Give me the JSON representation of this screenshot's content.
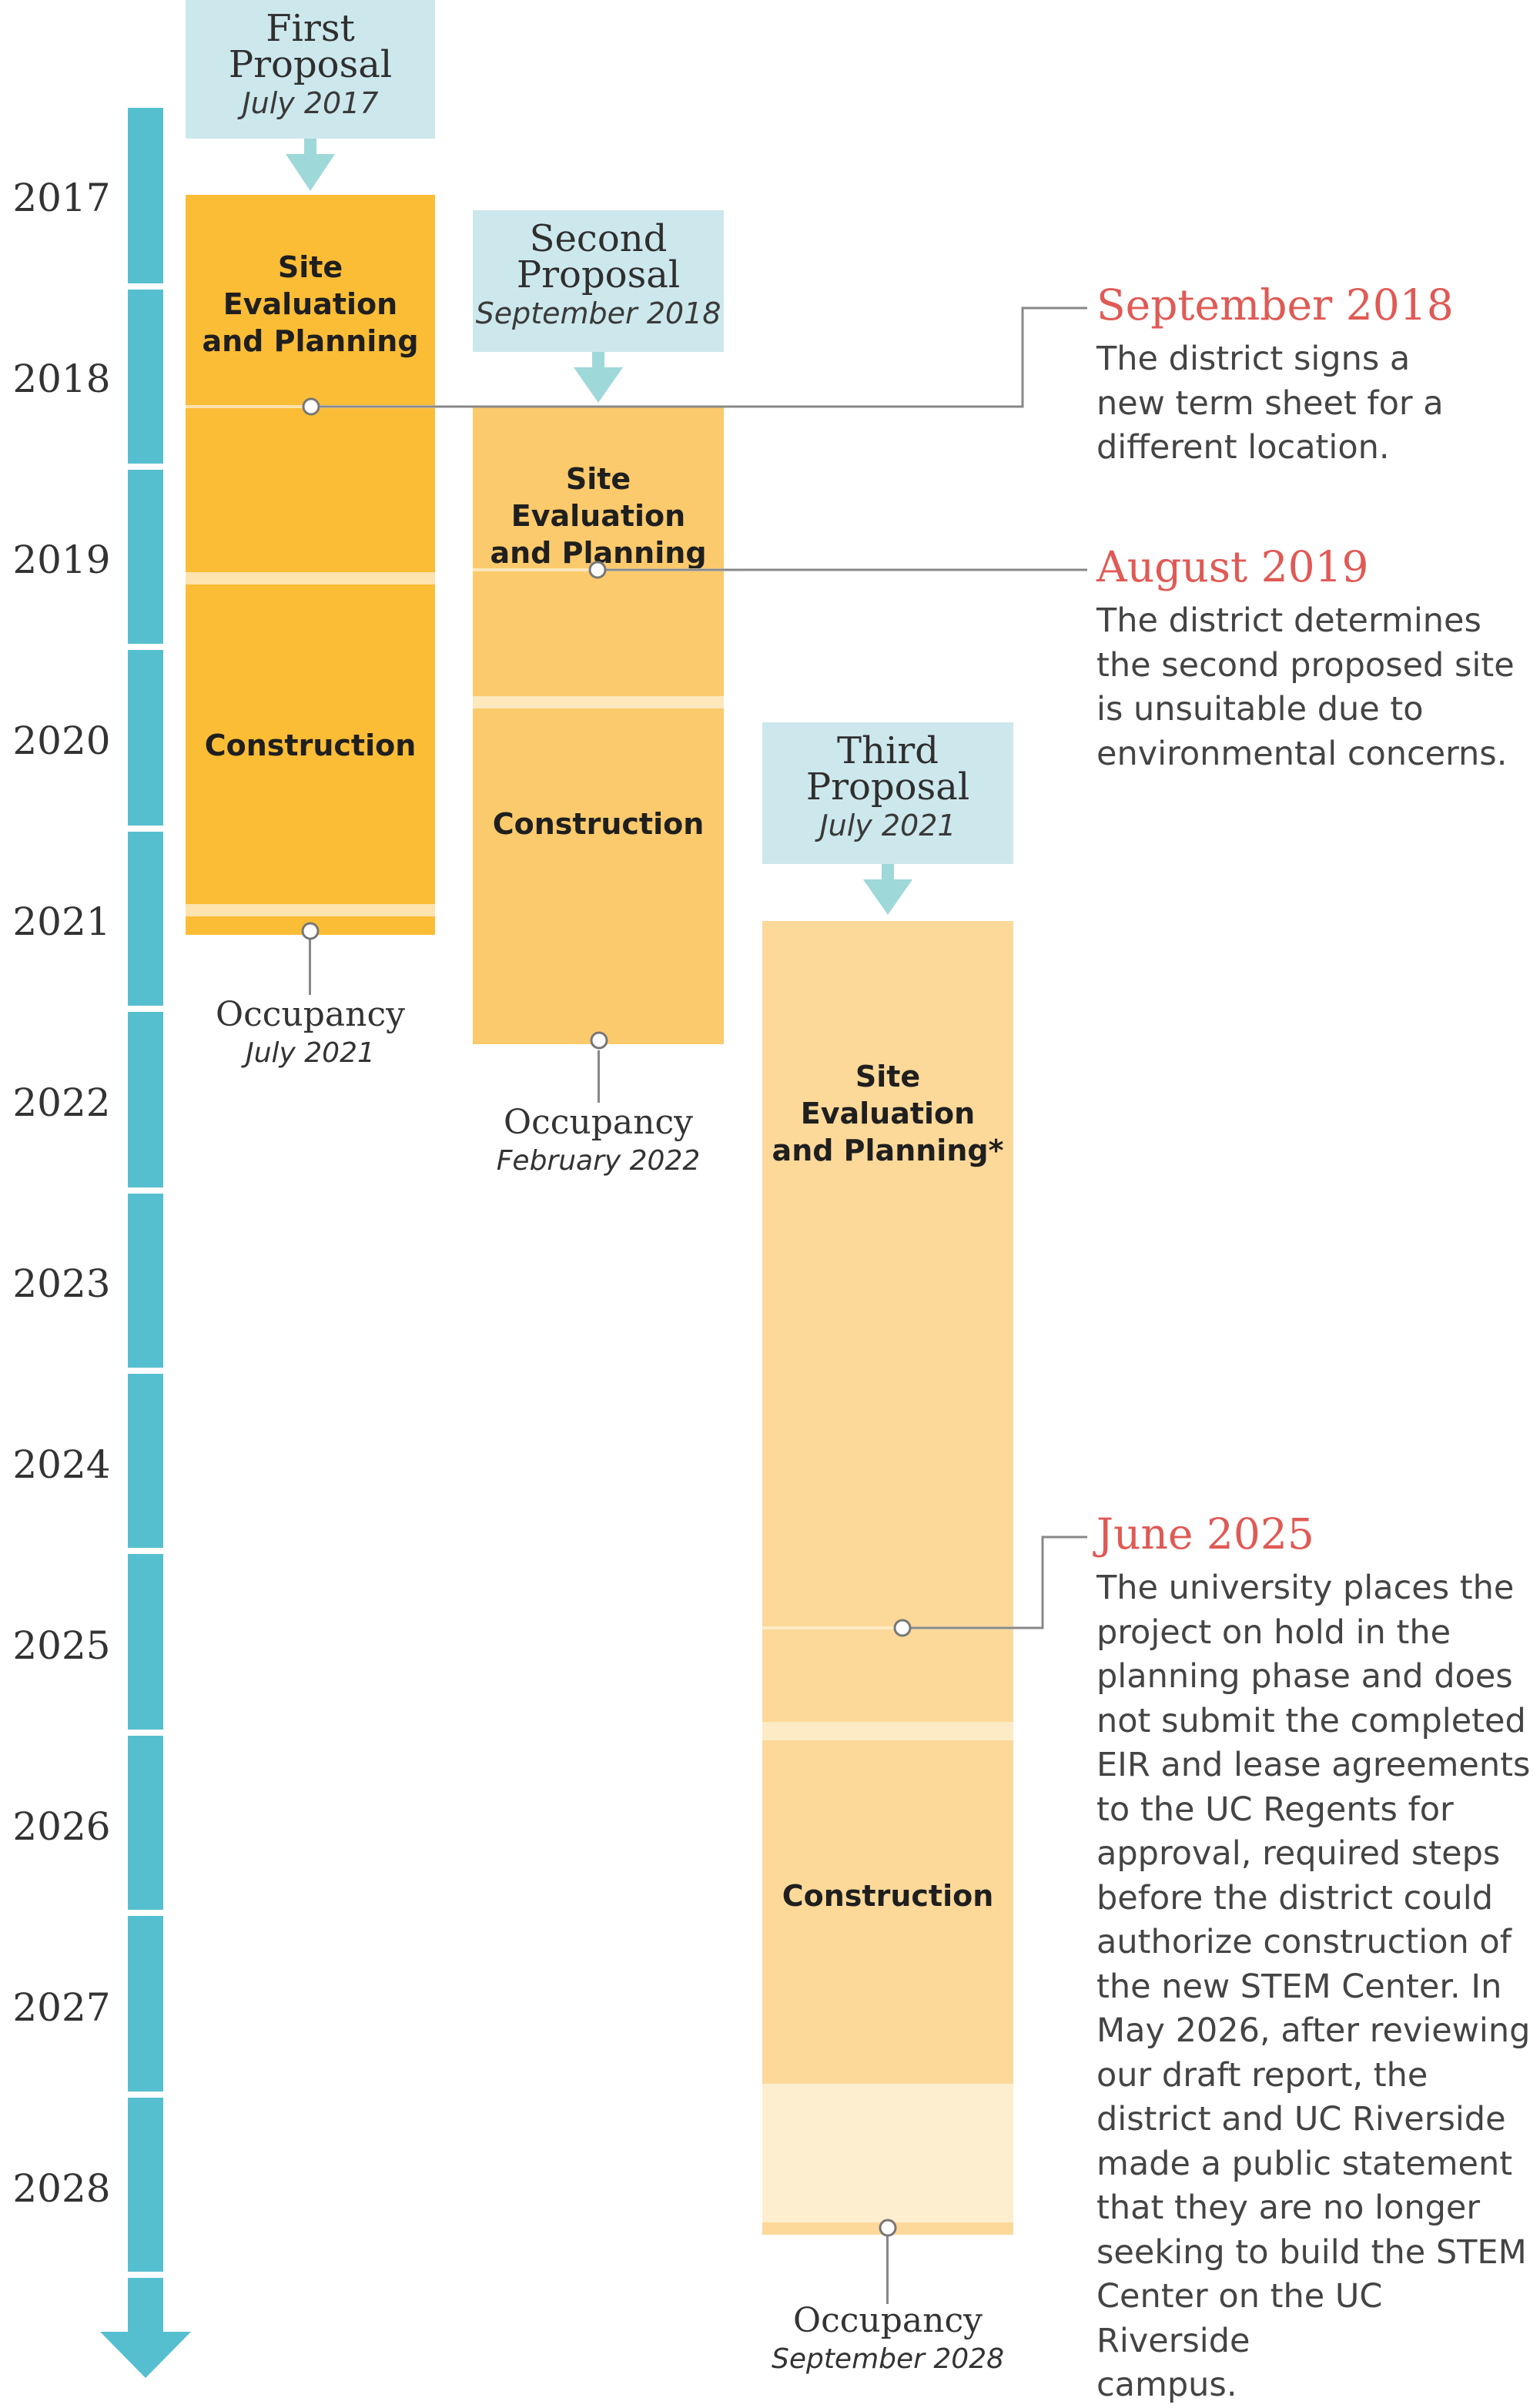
{
  "years": [
    "2017",
    "2018",
    "2019",
    "2020",
    "2021",
    "2022",
    "2023",
    "2024",
    "2025",
    "2026",
    "2027",
    "2028"
  ],
  "proposals": [
    {
      "title_line1": "First",
      "title_line2": "Proposal",
      "date": "July 2017",
      "phase_site": "Site Evaluation and Planning",
      "phase_construction": "Construction",
      "occupancy_title": "Occupancy",
      "occupancy_date": "July 2021"
    },
    {
      "title_line1": "Second",
      "title_line2": "Proposal",
      "date": "September 2018",
      "phase_site": "Site Evaluation and Planning",
      "phase_construction": "Construction",
      "occupancy_title": "Occupancy",
      "occupancy_date": "February 2022"
    },
    {
      "title_line1": "Third",
      "title_line2": "Proposal",
      "date": "July 2021",
      "phase_site": "Site Evaluation and Planning*",
      "phase_construction": "Construction",
      "occupancy_title": "Occupancy",
      "occupancy_date": "September 2028"
    }
  ],
  "events": [
    {
      "title": "September 2018",
      "lines": [
        "The district signs a",
        "new term sheet for a",
        "different location."
      ]
    },
    {
      "title": "August 2019",
      "lines": [
        "The district determines",
        "the second proposed site",
        "is unsuitable due to",
        "environmental concerns."
      ]
    },
    {
      "title": "June 2025",
      "lines": [
        "The university places the",
        "project on hold in the",
        "planning phase and does",
        "not submit the completed",
        "EIR and lease agreements",
        "to the UC Regents for",
        "approval, required steps",
        "before the district could",
        "authorize construction of",
        "the new STEM Center. In",
        "May 2026, after reviewing",
        "our draft report, the",
        "district and UC Riverside",
        "made a public statement",
        "that they are no longer",
        "seeking to build the STEM",
        "Center on the UC Riverside",
        "campus."
      ]
    }
  ],
  "colors": {
    "axis": "#56bfcf",
    "header_bg": "#cde8ec",
    "event_title": "#e05a55",
    "first_fill": "#fbbd36",
    "second_fill": "#fbca6c",
    "third_fill": "#fcd999",
    "third_projected": "#fdeecf"
  }
}
